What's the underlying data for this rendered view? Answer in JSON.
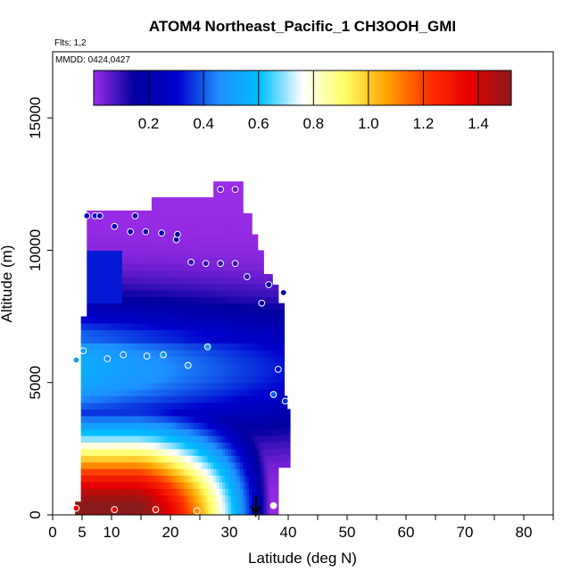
{
  "chart_data": {
    "type": "heatmap",
    "title": "ATOM4 Northeast_Pacific_1 CH3OOH_GMI",
    "flights_note": "Flts: 1,2",
    "date_note": "MMDD: 0424,0427",
    "xlabel": "Latitude (deg N)",
    "ylabel": "Altitude (m)",
    "xlim": [
      0,
      85
    ],
    "ylim": [
      0,
      17500
    ],
    "x_ticks": [
      0,
      5,
      10,
      20,
      30,
      40,
      50,
      60,
      70,
      80
    ],
    "y_ticks": [
      0,
      5000,
      10000,
      15000
    ],
    "colorbar": {
      "min": 0,
      "max": 1.52,
      "ticks": [
        0.2,
        0.4,
        0.6,
        0.8,
        1.0,
        1.2,
        1.4
      ],
      "tick_labels": [
        "0.2",
        "0.4",
        "0.6",
        "0.8",
        "1.0",
        "1.2",
        "1.4"
      ],
      "colors": [
        "#9a2ce6",
        "#00009e",
        "#0000cd",
        "#1e90ff",
        "#00bfff",
        "#ffffff",
        "#ffff66",
        "#ffa500",
        "#ff3300",
        "#e60000",
        "#8b1a1a"
      ]
    },
    "grid": false,
    "arrow_marker_latitude": 34.5,
    "observations": [
      {
        "lat": 4.0,
        "alt": 250,
        "value": 1.35
      },
      {
        "lat": 10.5,
        "alt": 200,
        "value": 1.35
      },
      {
        "lat": 17.5,
        "alt": 200,
        "value": 1.3
      },
      {
        "lat": 24.5,
        "alt": 150,
        "value": 1.1
      },
      {
        "lat": 37.5,
        "alt": 350,
        "value": 0.8
      },
      {
        "lat": 4.0,
        "alt": 5850,
        "value": 0.5
      },
      {
        "lat": 5.2,
        "alt": 6200,
        "value": 0.5
      },
      {
        "lat": 9.3,
        "alt": 5900,
        "value": 0.45
      },
      {
        "lat": 12.0,
        "alt": 6050,
        "value": 0.45
      },
      {
        "lat": 16.0,
        "alt": 6000,
        "value": 0.45
      },
      {
        "lat": 18.8,
        "alt": 6050,
        "value": 0.5
      },
      {
        "lat": 23.0,
        "alt": 5650,
        "value": 0.45
      },
      {
        "lat": 26.3,
        "alt": 6350,
        "value": 0.5
      },
      {
        "lat": 37.5,
        "alt": 4550,
        "value": 0.4
      },
      {
        "lat": 38.3,
        "alt": 5500,
        "value": 0.3
      },
      {
        "lat": 39.5,
        "alt": 4300,
        "value": 0.35
      },
      {
        "lat": 35.5,
        "alt": 8000,
        "value": 0.2
      },
      {
        "lat": 36.7,
        "alt": 8700,
        "value": 0.2
      },
      {
        "lat": 39.2,
        "alt": 8400,
        "value": 0.2
      },
      {
        "lat": 33.0,
        "alt": 9000,
        "value": 0.1
      },
      {
        "lat": 5.8,
        "alt": 11300,
        "value": 0.3
      },
      {
        "lat": 7.2,
        "alt": 11300,
        "value": 0.3
      },
      {
        "lat": 8.0,
        "alt": 11300,
        "value": 0.3
      },
      {
        "lat": 10.5,
        "alt": 10900,
        "value": 0.25
      },
      {
        "lat": 13.2,
        "alt": 10700,
        "value": 0.2
      },
      {
        "lat": 14.0,
        "alt": 11300,
        "value": 0.25
      },
      {
        "lat": 15.8,
        "alt": 10700,
        "value": 0.2
      },
      {
        "lat": 18.5,
        "alt": 10650,
        "value": 0.2
      },
      {
        "lat": 21.0,
        "alt": 10400,
        "value": 0.15
      },
      {
        "lat": 21.2,
        "alt": 10600,
        "value": 0.15
      },
      {
        "lat": 23.5,
        "alt": 9550,
        "value": 0.1
      },
      {
        "lat": 26.0,
        "alt": 9500,
        "value": 0.1
      },
      {
        "lat": 28.5,
        "alt": 9500,
        "value": 0.1
      },
      {
        "lat": 31.0,
        "alt": 9500,
        "value": 0.1
      },
      {
        "lat": 28.5,
        "alt": 12300,
        "value": 0.05
      },
      {
        "lat": 31.0,
        "alt": 12300,
        "value": 0.05
      }
    ]
  }
}
